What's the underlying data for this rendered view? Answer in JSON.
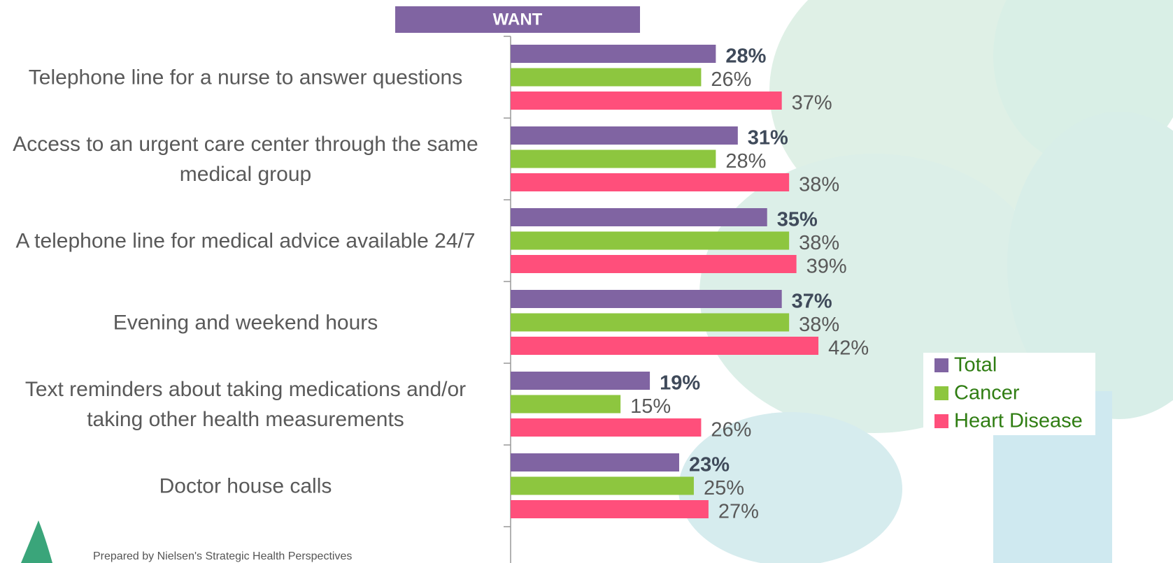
{
  "chart_data": {
    "type": "bar",
    "orientation": "horizontal",
    "title": "WANT",
    "footer": "Prepared by Nielsen's Strategic Health Perspectives",
    "categories": [
      "Telephone line for a nurse to answer questions",
      "Access to an urgent care center through the same medical group",
      "A telephone line for medical advice available 24/7",
      "Evening and weekend hours",
      "Text reminders about taking medications and/or taking other health measurements",
      "Doctor house calls"
    ],
    "series": [
      {
        "name": "Total",
        "color": "#8064a2",
        "values": [
          28,
          31,
          35,
          37,
          19,
          23
        ],
        "value_labels": [
          "28%",
          "31%",
          "35%",
          "37%",
          "19%",
          "23%"
        ],
        "bold": true
      },
      {
        "name": "Cancer",
        "color": "#8dc63f",
        "values": [
          26,
          28,
          38,
          38,
          15,
          25
        ],
        "value_labels": [
          "26%",
          "28%",
          "38%",
          "38%",
          "15%",
          "25%"
        ]
      },
      {
        "name": "Heart Disease",
        "color": "#ff4f7b",
        "values": [
          37,
          38,
          39,
          42,
          26,
          27
        ],
        "value_labels": [
          "37%",
          "38%",
          "39%",
          "42%",
          "26%",
          "27%"
        ]
      }
    ],
    "xlim": [
      0,
      90
    ],
    "legend": "right"
  }
}
